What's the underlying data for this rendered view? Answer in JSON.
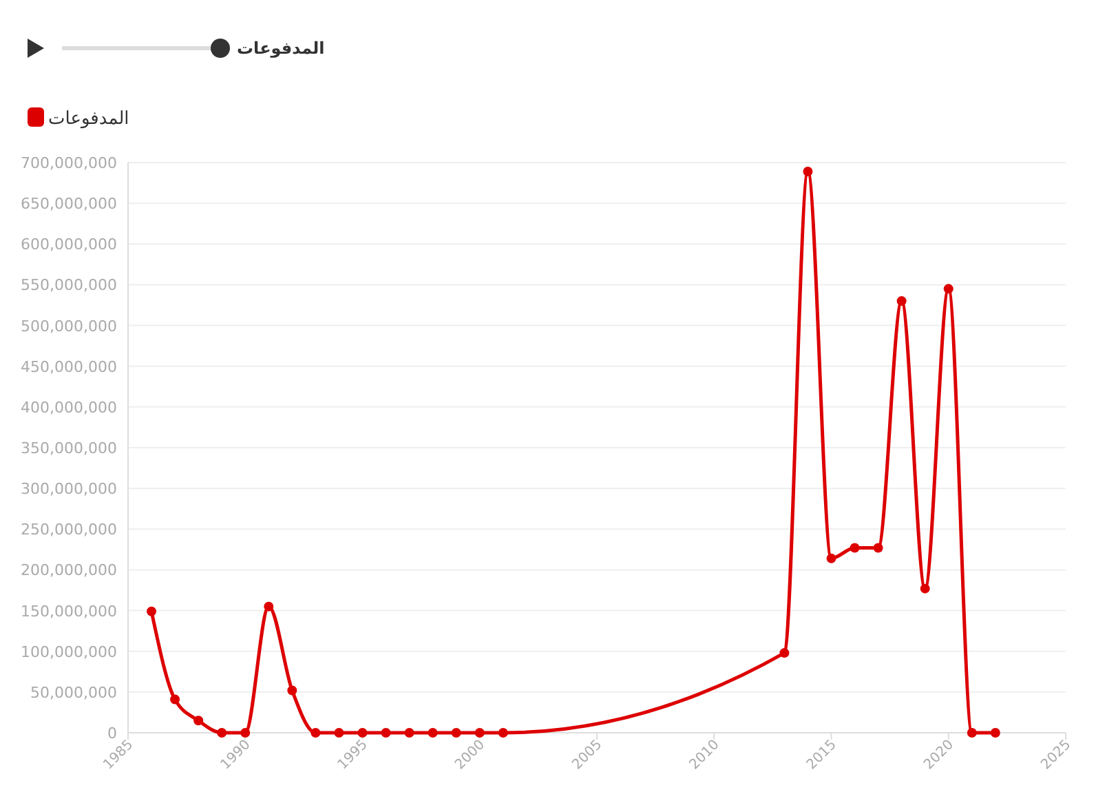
{
  "chart_data": {
    "type": "line",
    "annotations": [
      "المدفوعات"
    ],
    "x": [
      1986,
      1987,
      1988,
      1989,
      1990,
      1991,
      1992,
      1993,
      1994,
      1995,
      1996,
      1997,
      1998,
      1999,
      2000,
      2001,
      2013,
      2014,
      2015,
      2016,
      2017,
      2018,
      2019,
      2020,
      2021,
      2022
    ],
    "series": [
      {
        "name": "المدفوعات",
        "color": "#dd0000",
        "values": [
          149000000,
          41000000,
          15000000,
          0,
          0,
          155000000,
          52000000,
          0,
          0,
          0,
          0,
          0,
          0,
          0,
          0,
          0,
          98000000,
          689000000,
          214000000,
          227000000,
          227000000,
          530000000,
          177000000,
          545000000,
          0,
          0
        ]
      }
    ],
    "xlim": [
      1985,
      2025
    ],
    "xticks": [
      1985,
      1990,
      1995,
      2000,
      2005,
      2010,
      2015,
      2020,
      2025
    ],
    "ylim": [
      0,
      700000000
    ],
    "yticks": [
      0,
      {
        "value": 50000000,
        "label": "50,000,000"
      },
      {
        "value": 100000000,
        "label": "100,000,000"
      },
      {
        "value": 150000000,
        "label": "150,000,000"
      },
      {
        "value": 200000000,
        "label": "200,000,000"
      },
      {
        "value": 250000000,
        "label": "250,000,000"
      },
      {
        "value": 300000000,
        "label": "300,000,000"
      },
      {
        "value": 350000000,
        "label": "350,000,000"
      },
      {
        "value": 400000000,
        "label": "400,000,000"
      },
      {
        "value": 450000000,
        "label": "450,000,000"
      },
      {
        "value": 500000000,
        "label": "500,000,000"
      },
      {
        "value": 550000000,
        "label": "550,000,000"
      },
      {
        "value": 600000000,
        "label": "600,000,000"
      },
      {
        "value": 650000000,
        "label": "650,000,000"
      },
      {
        "value": 700000000,
        "label": "700,000,000"
      }
    ],
    "grid": "y",
    "legend": "top left",
    "marker": "circle",
    "line_style": "solid"
  }
}
